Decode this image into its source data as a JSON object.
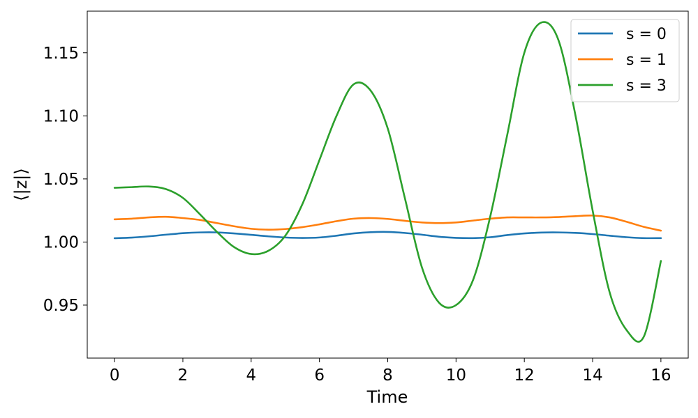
{
  "chart_data": {
    "type": "line",
    "title": "",
    "xlabel": "Time",
    "ylabel": "⟨|z|⟩",
    "xlim": [
      -0.8,
      16.8
    ],
    "ylim": [
      0.908,
      1.183
    ],
    "xticks": [
      0,
      2,
      4,
      6,
      8,
      10,
      12,
      14,
      16
    ],
    "xtick_labels": [
      "0",
      "2",
      "4",
      "6",
      "8",
      "10",
      "12",
      "14",
      "16"
    ],
    "yticks": [
      0.95,
      1.0,
      1.05,
      1.1,
      1.15
    ],
    "ytick_labels": [
      "0.95",
      "1.00",
      "1.05",
      "1.10",
      "1.15"
    ],
    "grid": false,
    "legend_position": "top-right",
    "x": [
      0,
      0.5,
      1,
      1.5,
      2,
      2.5,
      3,
      3.5,
      4,
      4.5,
      5,
      5.5,
      6,
      6.5,
      7,
      7.5,
      8,
      8.5,
      9,
      9.5,
      10,
      10.5,
      11,
      11.5,
      12,
      12.5,
      13,
      13.5,
      14,
      14.5,
      15,
      15.5,
      16
    ],
    "series": [
      {
        "name": "s = 0",
        "color": "#1f77b4",
        "values": [
          1.003,
          1.0035,
          1.0045,
          1.0058,
          1.007,
          1.0076,
          1.0076,
          1.0068,
          1.0057,
          1.0045,
          1.0036,
          1.0032,
          1.0036,
          1.005,
          1.0068,
          1.0078,
          1.008,
          1.0072,
          1.0058,
          1.0042,
          1.0033,
          1.0031,
          1.0038,
          1.0055,
          1.0068,
          1.0075,
          1.0076,
          1.0072,
          1.0063,
          1.005,
          1.0038,
          1.0031,
          1.0031
        ]
      },
      {
        "name": "s = 1",
        "color": "#ff7f0e",
        "values": [
          1.018,
          1.0185,
          1.0195,
          1.02,
          1.019,
          1.0175,
          1.015,
          1.0125,
          1.0105,
          1.0098,
          1.0103,
          1.0118,
          1.014,
          1.0165,
          1.0185,
          1.019,
          1.0183,
          1.0168,
          1.0155,
          1.015,
          1.0155,
          1.017,
          1.0185,
          1.0195,
          1.0195,
          1.0195,
          1.0198,
          1.0205,
          1.021,
          1.0195,
          1.016,
          1.012,
          1.009
        ]
      },
      {
        "name": "s = 3",
        "color": "#2ca02c",
        "values": [
          1.043,
          1.0435,
          1.044,
          1.042,
          1.035,
          1.022,
          1.008,
          0.996,
          0.9905,
          0.993,
          1.005,
          1.03,
          1.065,
          1.1,
          1.125,
          1.12,
          1.09,
          1.035,
          0.98,
          0.952,
          0.95,
          0.97,
          1.02,
          1.085,
          1.15,
          1.174,
          1.16,
          1.1,
          1.025,
          0.96,
          0.93,
          0.925,
          0.985
        ]
      }
    ]
  }
}
